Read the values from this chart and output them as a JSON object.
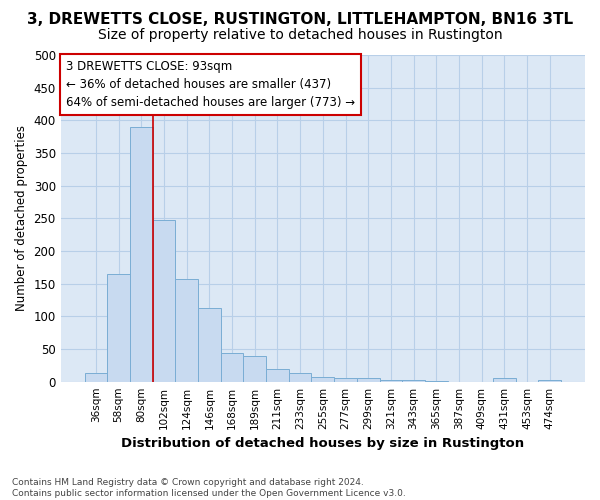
{
  "title": "3, DREWETTS CLOSE, RUSTINGTON, LITTLEHAMPTON, BN16 3TL",
  "subtitle": "Size of property relative to detached houses in Rustington",
  "xlabel": "Distribution of detached houses by size in Rustington",
  "ylabel": "Number of detached properties",
  "bar_color": "#c8daf0",
  "bar_edge_color": "#7aadd4",
  "background_color": "#dce8f5",
  "grid_color": "#b8cfe8",
  "annotation_text": "3 DREWETTS CLOSE: 93sqm\n← 36% of detached houses are smaller (437)\n64% of semi-detached houses are larger (773) →",
  "categories": [
    "36sqm",
    "58sqm",
    "80sqm",
    "102sqm",
    "124sqm",
    "146sqm",
    "168sqm",
    "189sqm",
    "211sqm",
    "233sqm",
    "255sqm",
    "277sqm",
    "299sqm",
    "321sqm",
    "343sqm",
    "365sqm",
    "387sqm",
    "409sqm",
    "431sqm",
    "453sqm",
    "474sqm"
  ],
  "values": [
    13,
    165,
    390,
    248,
    157,
    113,
    44,
    39,
    19,
    14,
    7,
    5,
    5,
    3,
    2,
    1,
    0,
    0,
    5,
    0,
    2
  ],
  "ylim": [
    0,
    500
  ],
  "yticks": [
    0,
    50,
    100,
    150,
    200,
    250,
    300,
    350,
    400,
    450,
    500
  ],
  "footnote": "Contains HM Land Registry data © Crown copyright and database right 2024.\nContains public sector information licensed under the Open Government Licence v3.0.",
  "red_line_x": 2.5,
  "red_line_color": "#cc0000",
  "annotation_box_facecolor": "#ffffff",
  "annotation_box_edgecolor": "#cc0000",
  "fig_facecolor": "#ffffff",
  "title_fontsize": 11,
  "subtitle_fontsize": 10
}
